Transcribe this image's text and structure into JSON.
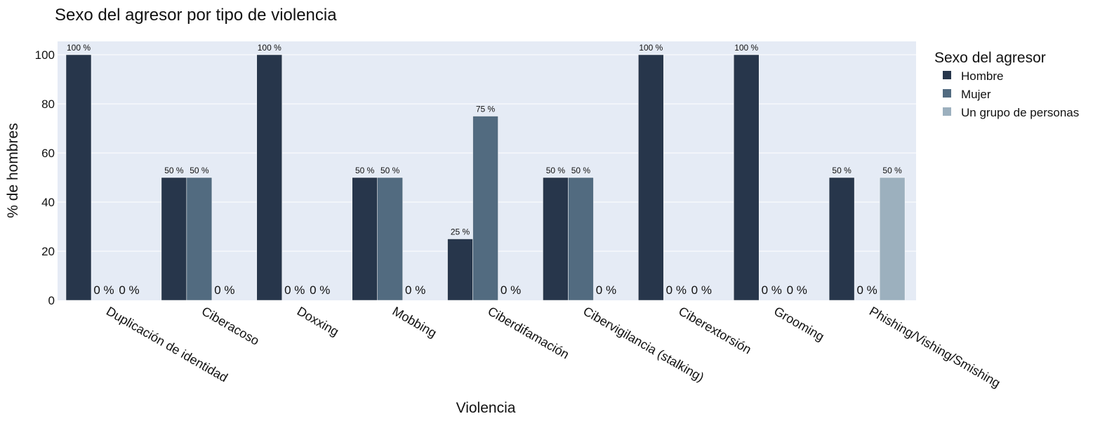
{
  "chart_data": {
    "type": "bar",
    "title": "Sexo del agresor por tipo de violencia",
    "xlabel": "Violencia",
    "ylabel": "% de hombres",
    "ylim": [
      0,
      105
    ],
    "yticks": [
      0,
      20,
      40,
      60,
      80,
      100
    ],
    "grid": true,
    "legend_title": "Sexo del agresor",
    "legend_position": "right",
    "value_suffix": " %",
    "categories": [
      "Duplicación de identidad",
      "Ciberacoso",
      "Doxxing",
      "Mobbing",
      "Ciberdifamación",
      "Cibervigilancia (stalking)",
      "Ciberextorsión",
      "Grooming",
      "Phishing/Vishing/Smishing"
    ],
    "series": [
      {
        "name": "Hombre",
        "color": "#27364b",
        "values": [
          100,
          50,
          100,
          50,
          25,
          50,
          100,
          100,
          50
        ]
      },
      {
        "name": "Mujer",
        "color": "#526b80",
        "values": [
          0,
          50,
          0,
          50,
          75,
          50,
          0,
          0,
          0
        ]
      },
      {
        "name": "Un grupo de personas",
        "color": "#9cb0be",
        "values": [
          0,
          0,
          0,
          0,
          0,
          0,
          0,
          0,
          50
        ]
      }
    ],
    "plot_background": "#e5ebf5",
    "grid_color": "#ffffff"
  }
}
